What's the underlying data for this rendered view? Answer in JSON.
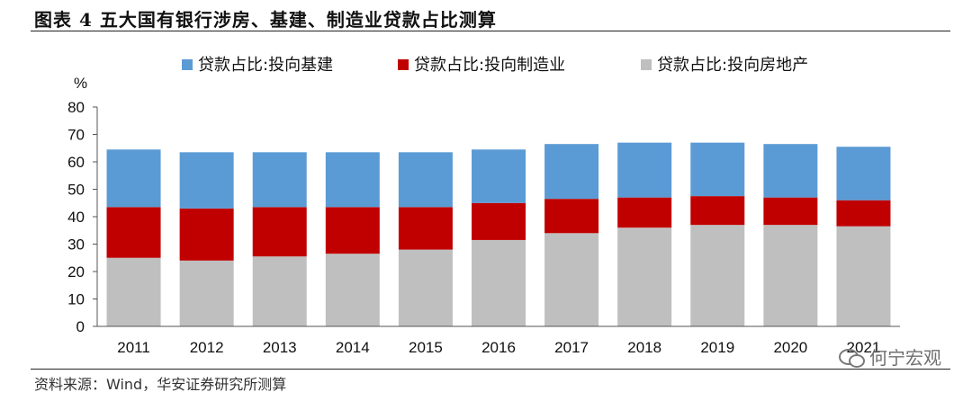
{
  "header": {
    "title": "图表 4 五大国有银行涉房、基建、制造业贷款占比测算"
  },
  "footer": {
    "source": "资料来源：Wind，华安证券研究所测算",
    "watermark": "何宁宏观"
  },
  "colors": {
    "infrastructure": "#5b9bd5",
    "manufacturing": "#c00000",
    "real_estate": "#bfbfbf"
  },
  "chart_data": {
    "type": "bar",
    "stacked": true,
    "title": "",
    "ylabel": "%",
    "xlabel": "",
    "ylim": [
      0,
      80
    ],
    "yticks": [
      0,
      10,
      20,
      30,
      40,
      50,
      60,
      70,
      80
    ],
    "categories": [
      "2011",
      "2012",
      "2013",
      "2014",
      "2015",
      "2016",
      "2017",
      "2018",
      "2019",
      "2020",
      "2021"
    ],
    "legend_position": "top",
    "series": [
      {
        "name": "贷款占比:投向房地产",
        "values": [
          25,
          24,
          25.5,
          26.5,
          28,
          31.5,
          34,
          36,
          37,
          37,
          36.5
        ]
      },
      {
        "name": "贷款占比:投向制造业",
        "values": [
          18.5,
          19,
          18,
          17,
          15.5,
          13.5,
          12.5,
          11,
          10.5,
          10,
          9.5
        ]
      },
      {
        "name": "贷款占比:投向基建",
        "values": [
          21,
          20.5,
          20,
          20,
          20,
          19.5,
          20,
          20,
          19.5,
          19.5,
          19.5
        ]
      }
    ],
    "legend": [
      "贷款占比:投向基建",
      "贷款占比:投向制造业",
      "贷款占比:投向房地产"
    ]
  }
}
